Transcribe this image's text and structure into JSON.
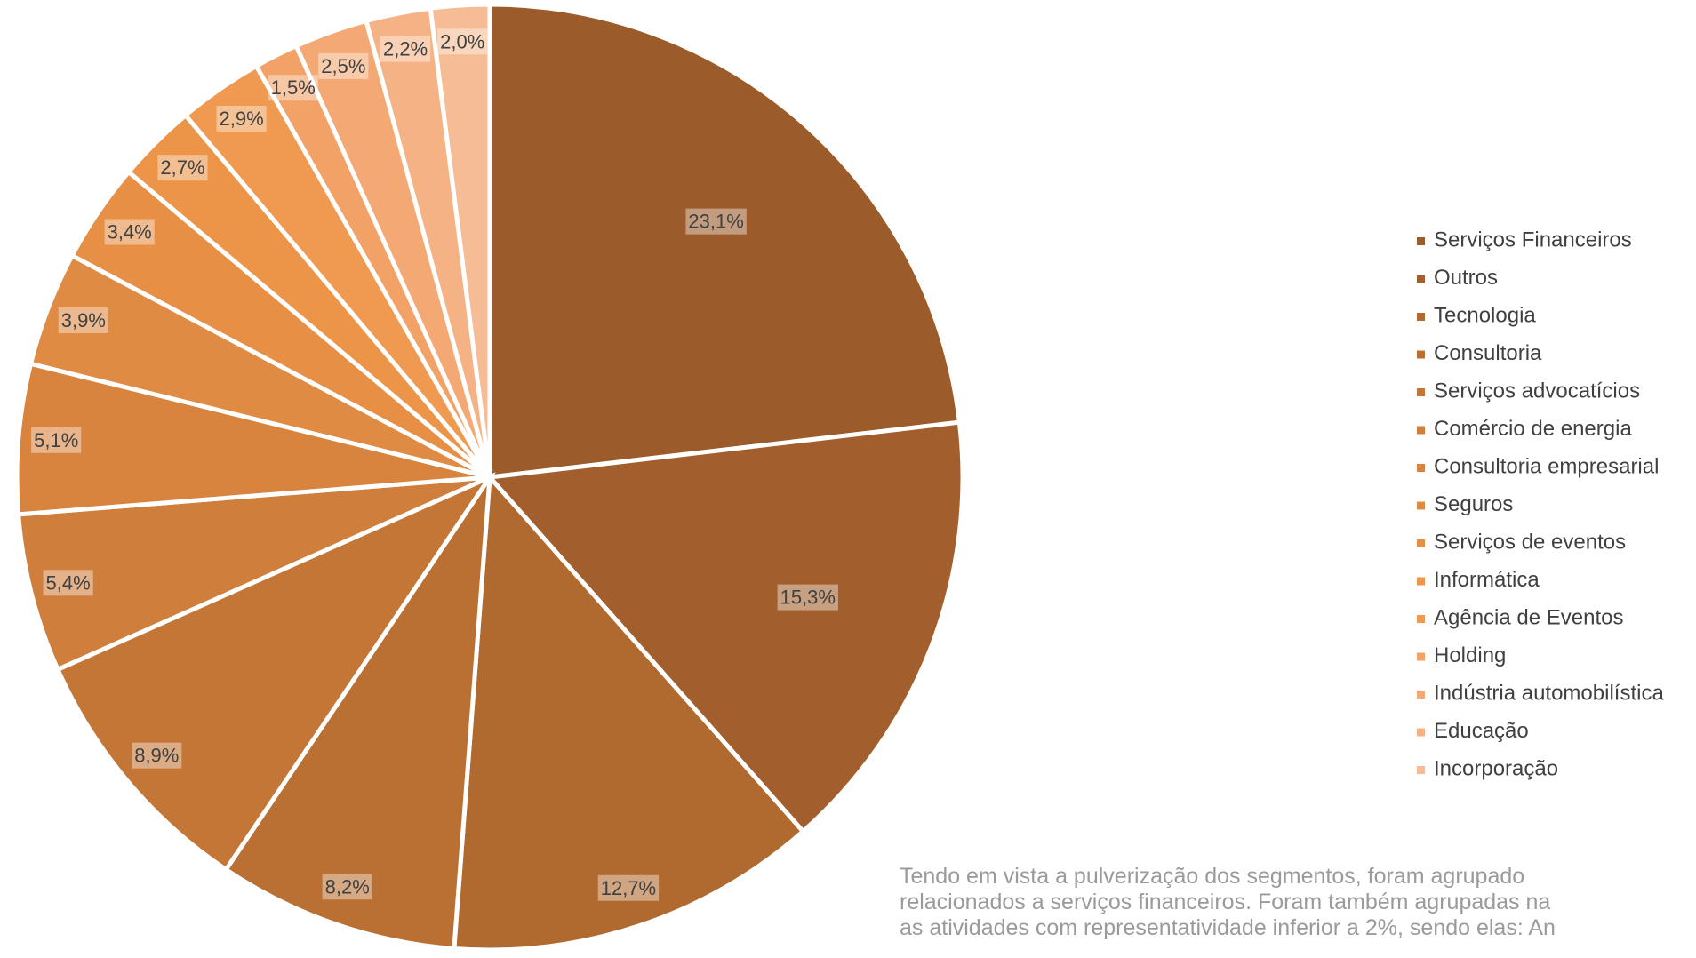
{
  "chart_data": {
    "type": "pie",
    "categories": [
      "Serviços Financeiros",
      "Outros",
      "Tecnologia",
      "Consultoria",
      "Serviços advocatícios",
      "Comércio de energia",
      "Consultoria empresarial",
      "Seguros",
      "Serviços de eventos",
      "Informática",
      "Agência de Eventos",
      "Holding",
      "Indústria automobilística",
      "Educação",
      "Incorporação"
    ],
    "values": [
      23.1,
      15.3,
      12.7,
      8.2,
      8.9,
      5.4,
      5.1,
      3.9,
      3.4,
      2.7,
      2.9,
      1.5,
      2.5,
      2.2,
      2.0
    ],
    "value_labels": [
      "23,1%",
      "15,3%",
      "12,7%",
      "8,2%",
      "8,9%",
      "5,4%",
      "5,1%",
      "3,9%",
      "3,4%",
      "2,7%",
      "2,9%",
      "1,5%",
      "2,5%",
      "2,2%",
      "2,0%"
    ],
    "colors": [
      "#9C5B2A",
      "#A25F2D",
      "#B0692F",
      "#BA7033",
      "#C47636",
      "#D07E3C",
      "#D8833E",
      "#E08B44",
      "#E68F45",
      "#EC9448",
      "#EF9A50",
      "#F2A266",
      "#F4A874",
      "#F5B385",
      "#F5BC95"
    ],
    "legend": "right"
  },
  "note_text": [
    "Tendo em vista a pulverização dos segmentos, foram agrupado",
    "relacionados a serviços financeiros. Foram também agrupadas na",
    "as atividades com representatividade inferior a 2%, sendo elas: An"
  ]
}
